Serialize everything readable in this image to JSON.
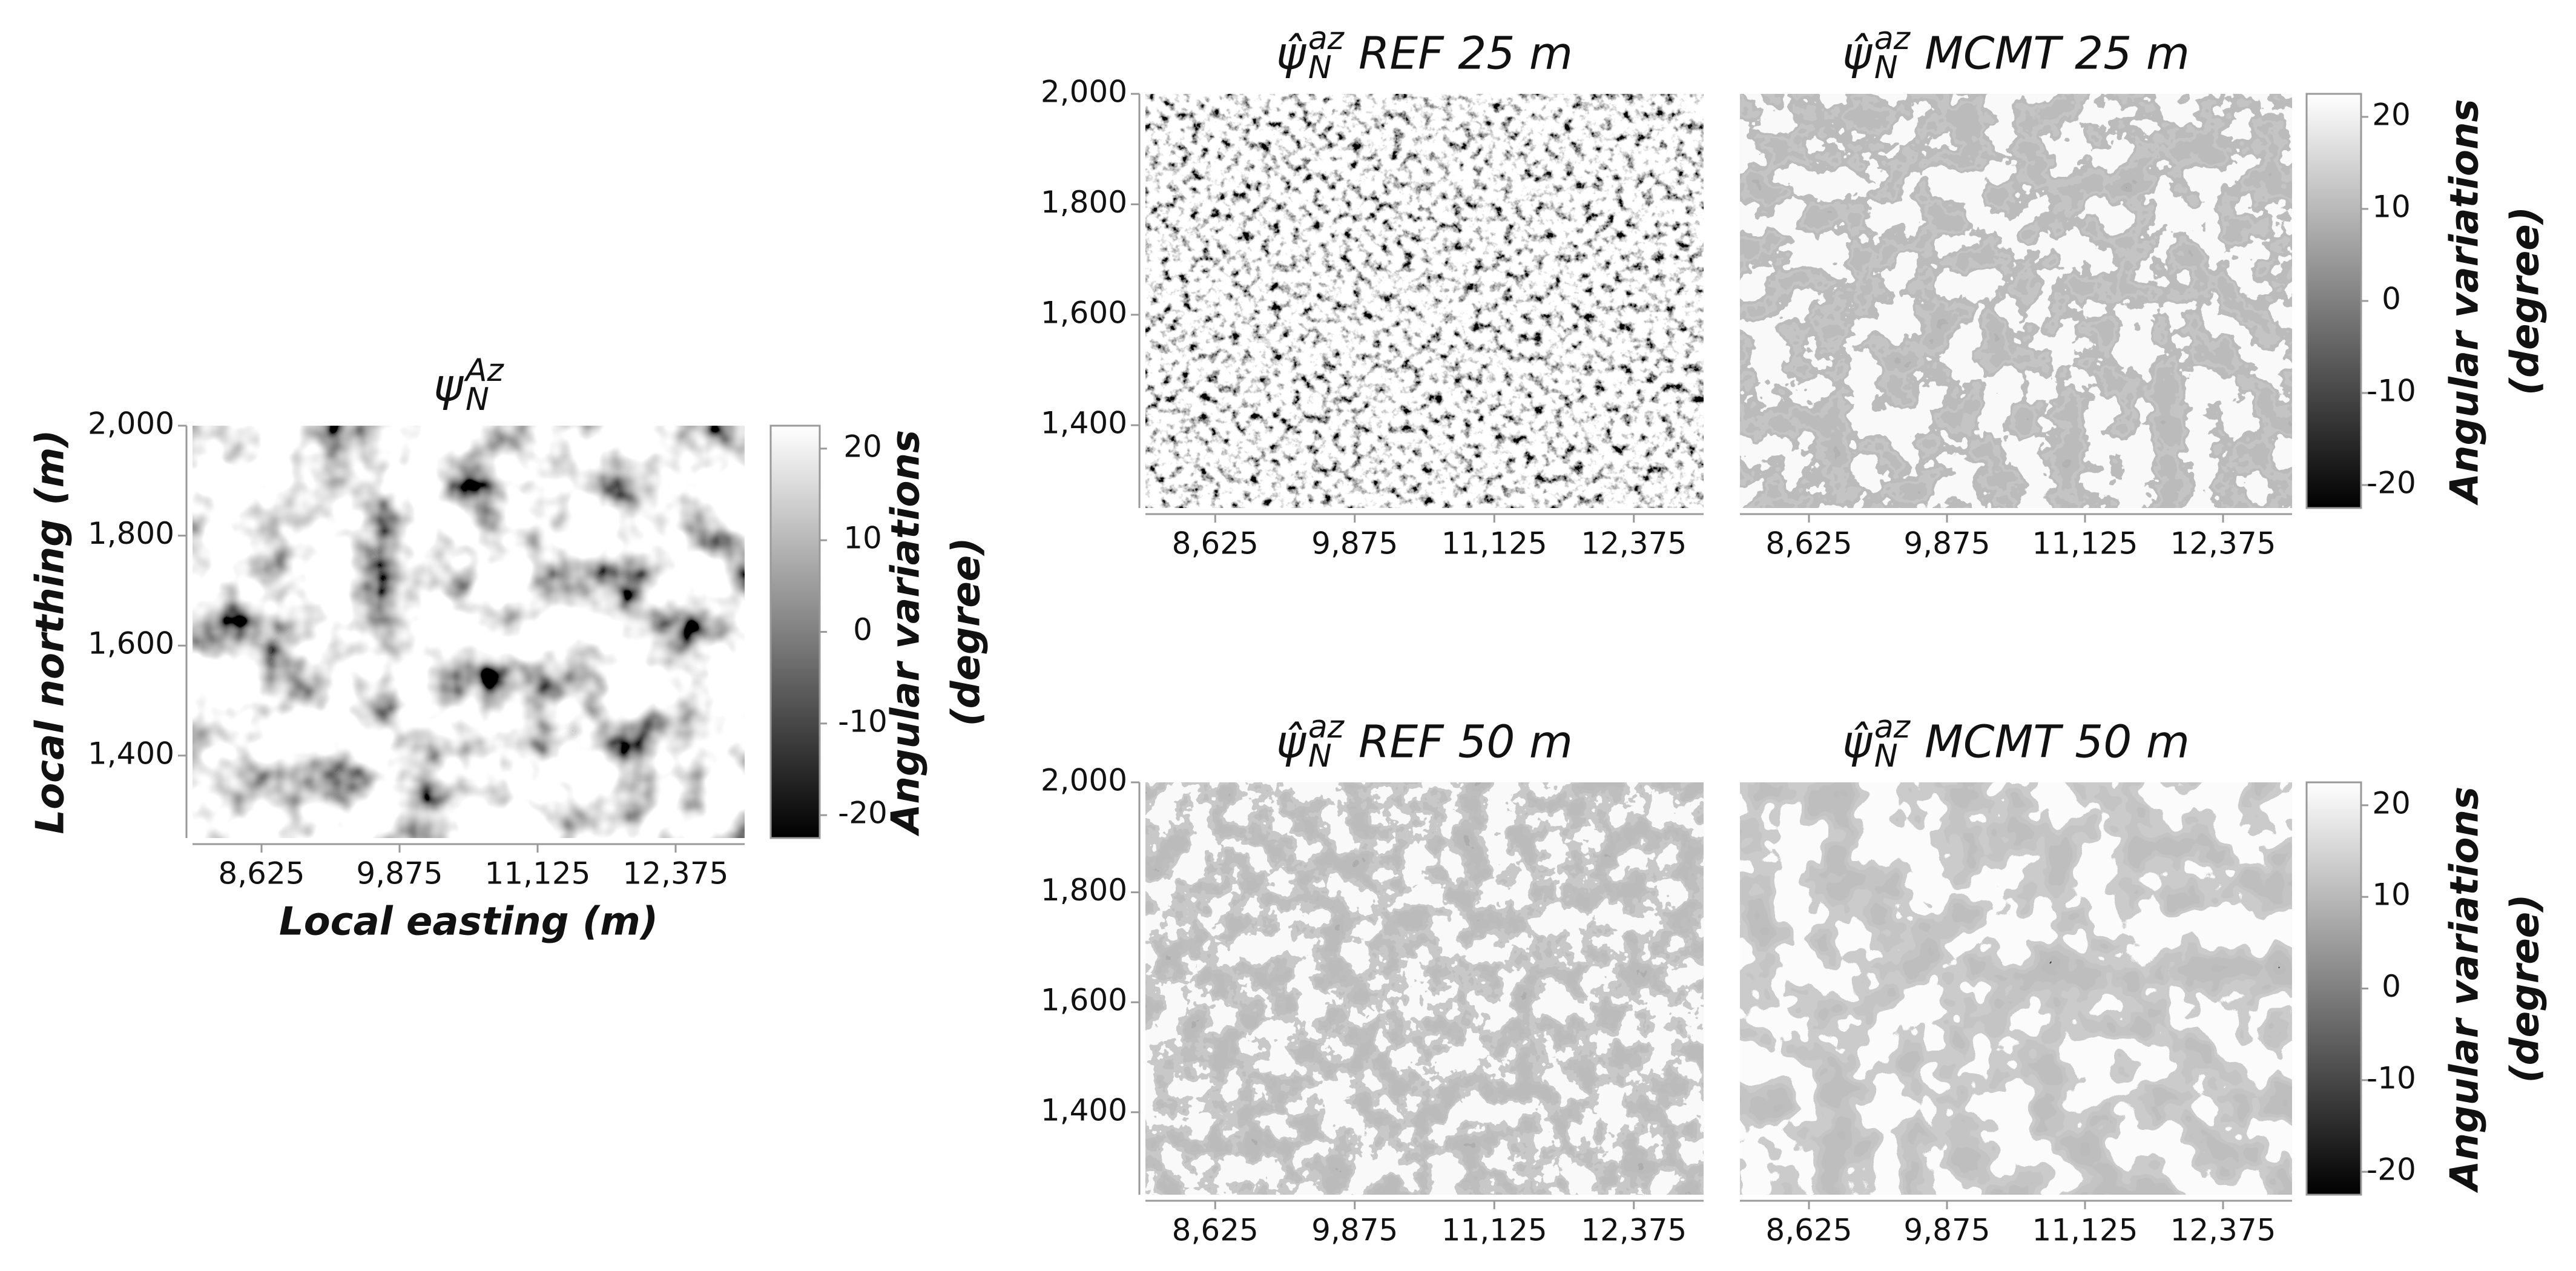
{
  "chart_data": [
    {
      "type": "heatmap",
      "title": {
        "symbol": "ψ",
        "subscript": "N",
        "superscript": "Az",
        "text": ""
      },
      "xlabel": "Local easting (m)",
      "ylabel": "Local northing (m)",
      "xlim": [
        8000,
        13000
      ],
      "ylim": [
        1250,
        2000
      ],
      "xticks": [
        {
          "value": 8625,
          "label": "8,625"
        },
        {
          "value": 9875,
          "label": "9,875"
        },
        {
          "value": 11125,
          "label": "11,125"
        },
        {
          "value": 12375,
          "label": "12,375"
        }
      ],
      "yticks": [
        {
          "value": 1400,
          "label": "1,400"
        },
        {
          "value": 1600,
          "label": "1,600"
        },
        {
          "value": 1800,
          "label": "1,800"
        },
        {
          "value": 2000,
          "label": "2,000"
        }
      ],
      "colorbar": {
        "label": [
          "Angular variations",
          "(degree)"
        ],
        "lim": [
          -22.5,
          22.5
        ],
        "ticks": [
          -20,
          -10,
          0,
          10,
          20
        ]
      }
    },
    {
      "type": "heatmap",
      "title": {
        "symbol": "ψ̂",
        "subscript": "N",
        "superscript": "az",
        "text": "REF 25 m"
      },
      "xlim": [
        8000,
        13000
      ],
      "ylim": [
        1250,
        2000
      ],
      "xticks": [
        {
          "value": 8625,
          "label": "8,625"
        },
        {
          "value": 9875,
          "label": "9,875"
        },
        {
          "value": 11125,
          "label": "11,125"
        },
        {
          "value": 12375,
          "label": "12,375"
        }
      ],
      "yticks": [
        {
          "value": 1400,
          "label": "1,400"
        },
        {
          "value": 1600,
          "label": "1,600"
        },
        {
          "value": 1800,
          "label": "1,800"
        },
        {
          "value": 2000,
          "label": "2,000"
        }
      ]
    },
    {
      "type": "heatmap",
      "title": {
        "symbol": "ψ̂",
        "subscript": "N",
        "superscript": "az",
        "text": "MCMT 25 m"
      },
      "xlim": [
        8000,
        13000
      ],
      "ylim": [
        1250,
        2000
      ],
      "xticks": [
        {
          "value": 8625,
          "label": "8,625"
        },
        {
          "value": 9875,
          "label": "9,875"
        },
        {
          "value": 11125,
          "label": "11,125"
        },
        {
          "value": 12375,
          "label": "12,375"
        }
      ],
      "colorbar": {
        "label": [
          "Angular variations",
          "(degree)"
        ],
        "lim": [
          -22.5,
          22.5
        ],
        "ticks": [
          -20,
          -10,
          0,
          10,
          20
        ]
      }
    },
    {
      "type": "heatmap",
      "title": {
        "symbol": "ψ̂",
        "subscript": "N",
        "superscript": "az",
        "text": "REF 50 m"
      },
      "xlim": [
        8000,
        13000
      ],
      "ylim": [
        1250,
        2000
      ],
      "xticks": [
        {
          "value": 8625,
          "label": "8,625"
        },
        {
          "value": 9875,
          "label": "9,875"
        },
        {
          "value": 11125,
          "label": "11,125"
        },
        {
          "value": 12375,
          "label": "12,375"
        }
      ],
      "yticks": [
        {
          "value": 1400,
          "label": "1,400"
        },
        {
          "value": 1600,
          "label": "1,600"
        },
        {
          "value": 1800,
          "label": "1,800"
        },
        {
          "value": 2000,
          "label": "2,000"
        }
      ]
    },
    {
      "type": "heatmap",
      "title": {
        "symbol": "ψ̂",
        "subscript": "N",
        "superscript": "az",
        "text": "MCMT 50 m"
      },
      "xlim": [
        8000,
        13000
      ],
      "ylim": [
        1250,
        2000
      ],
      "xticks": [
        {
          "value": 8625,
          "label": "8,625"
        },
        {
          "value": 9875,
          "label": "9,875"
        },
        {
          "value": 11125,
          "label": "11,125"
        },
        {
          "value": 12375,
          "label": "12,375"
        }
      ],
      "colorbar": {
        "label": [
          "Angular variations",
          "(degree)"
        ],
        "lim": [
          -22.5,
          22.5
        ],
        "ticks": [
          -20,
          -10,
          0,
          10,
          20
        ]
      }
    }
  ]
}
